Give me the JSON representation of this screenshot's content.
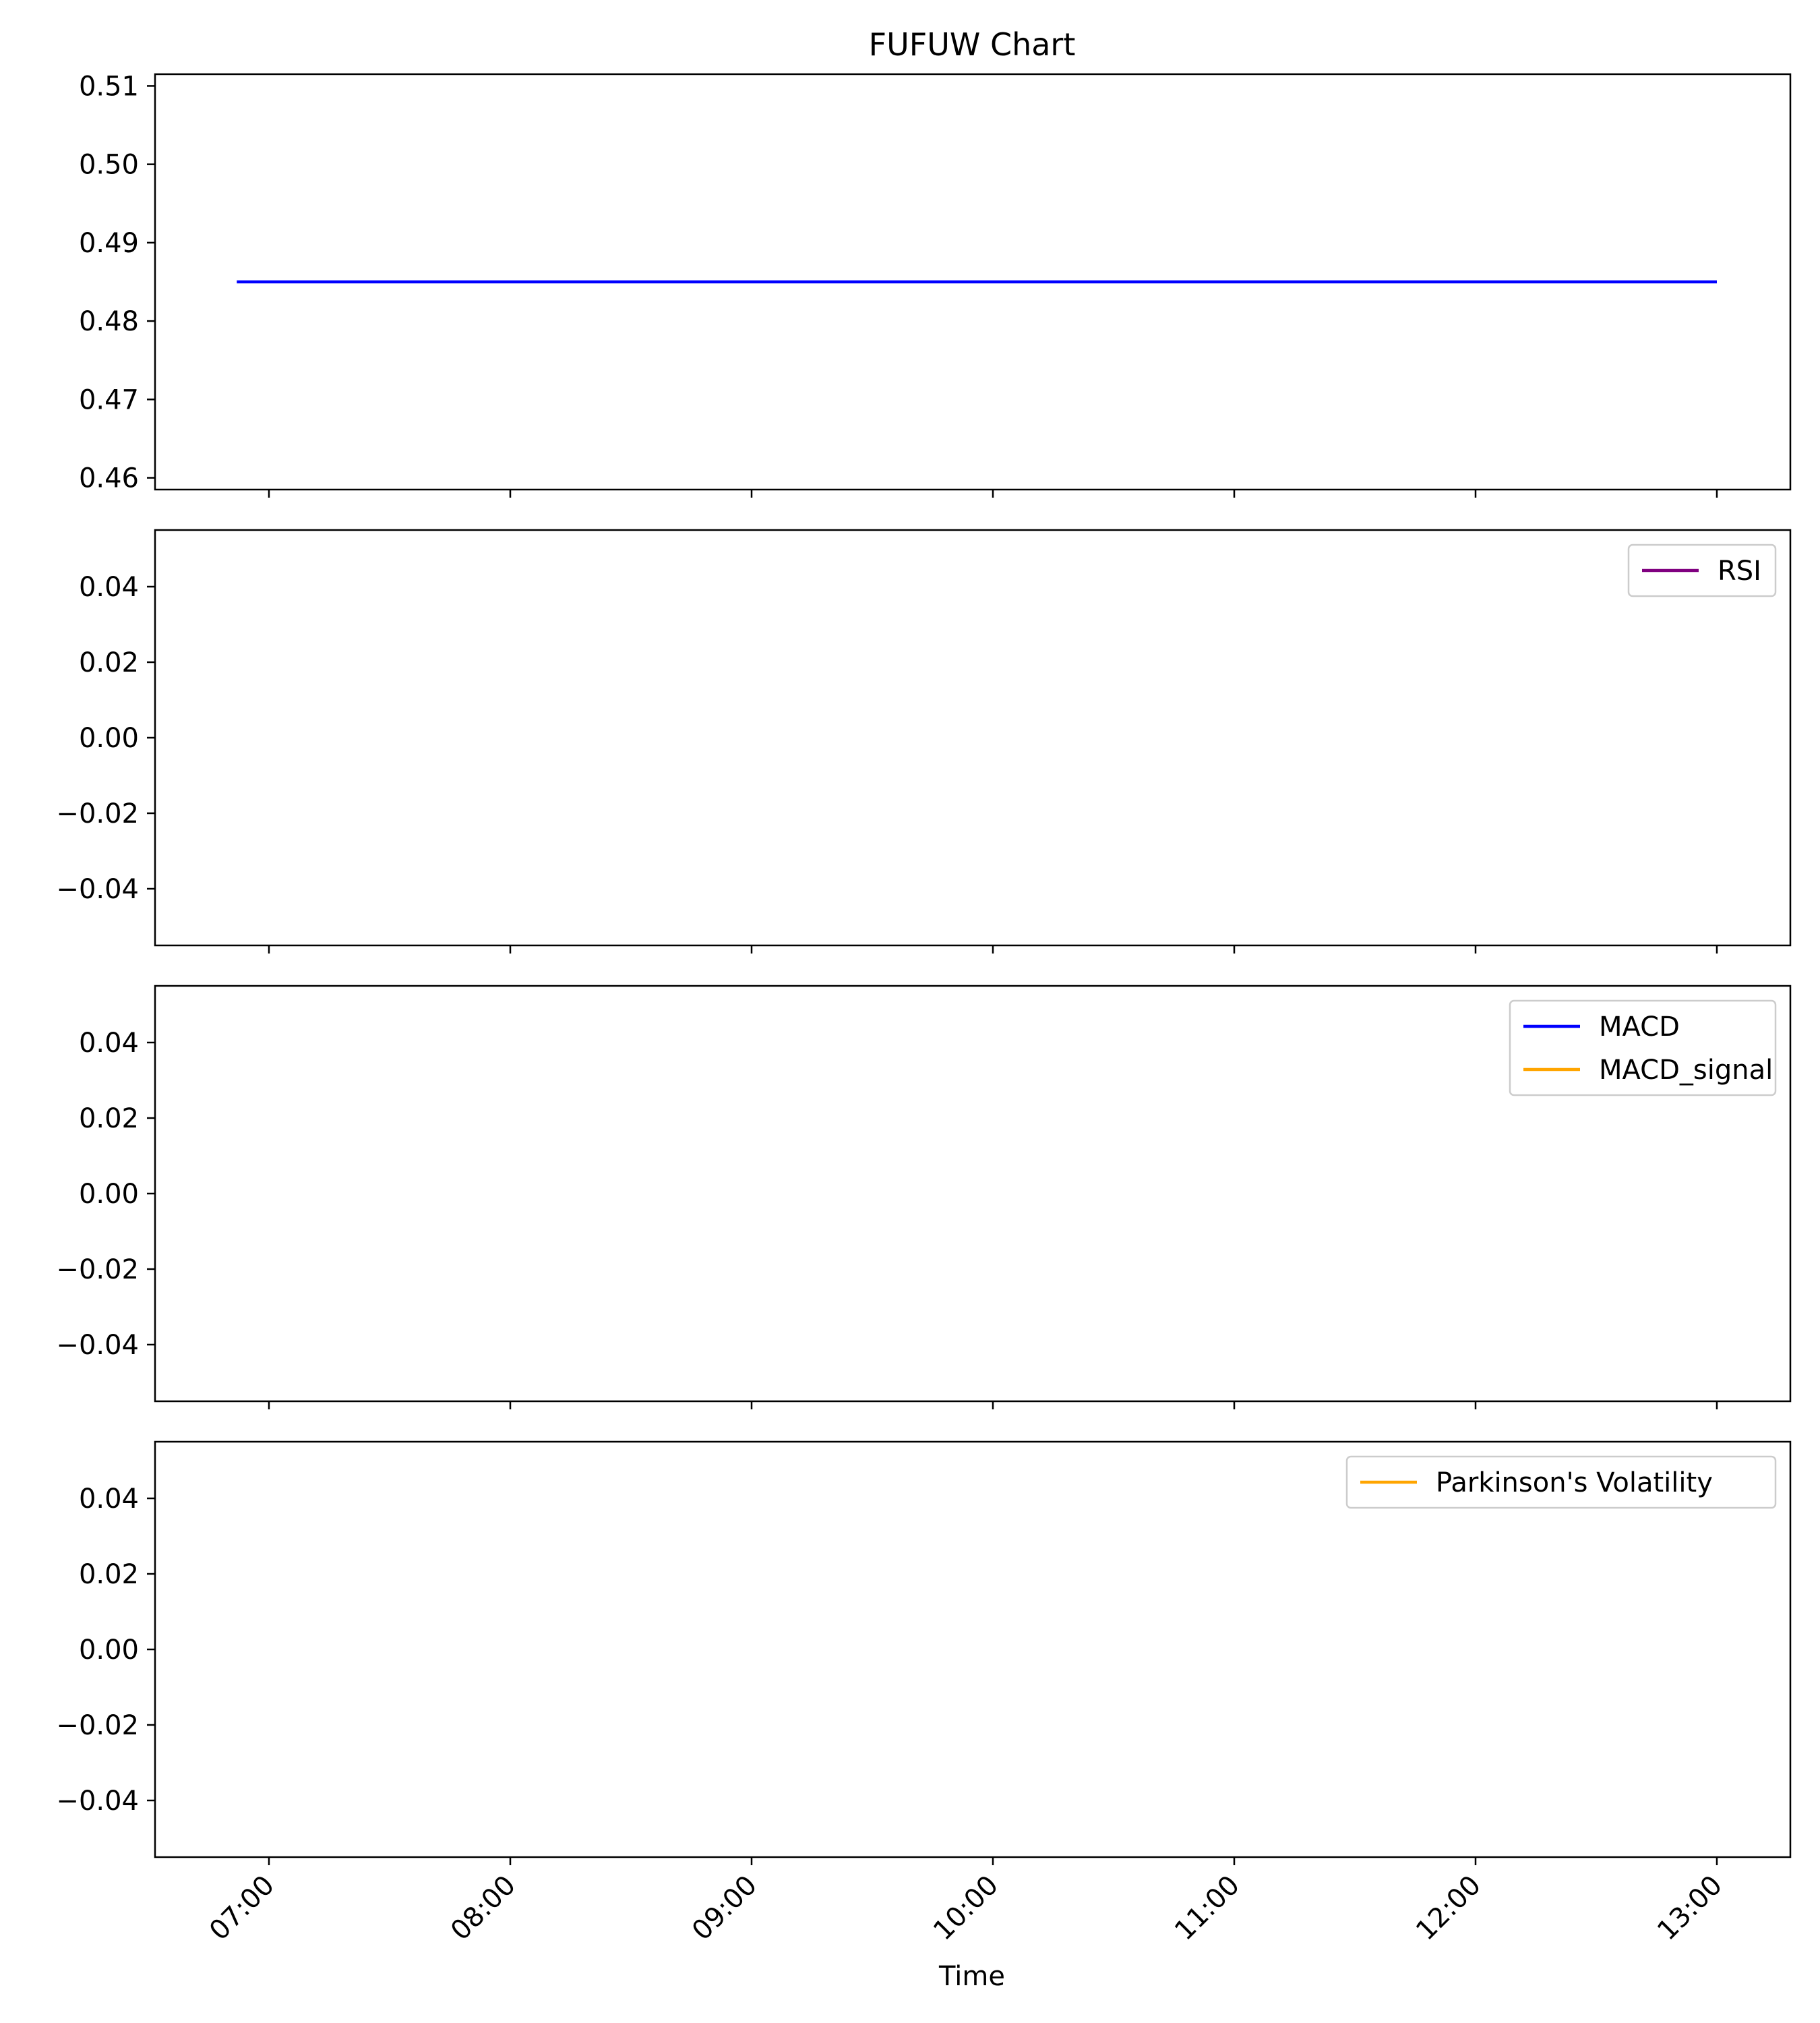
{
  "chart_data": {
    "type": "line",
    "title": "FUFUW Chart",
    "xlabel": "Time",
    "x_ticks": [
      "07:00",
      "08:00",
      "09:00",
      "10:00",
      "11:00",
      "12:00",
      "13:00"
    ],
    "panels": [
      {
        "name": "price",
        "ylim": [
          0.4585,
          0.5115
        ],
        "y_ticks": [
          "0.51",
          "0.50",
          "0.49",
          "0.48",
          "0.47",
          "0.46"
        ],
        "y_tick_values": [
          0.51,
          0.5,
          0.49,
          0.48,
          0.47,
          0.46
        ],
        "legend": [],
        "series": [
          {
            "color": "#0000ff",
            "x": [
              "06:52",
              "13:00"
            ],
            "y": [
              0.485,
              0.485
            ]
          }
        ]
      },
      {
        "name": "rsi",
        "ylim": [
          -0.055,
          0.055
        ],
        "y_ticks": [
          "0.04",
          "0.02",
          "0.00",
          "−0.02",
          "−0.04"
        ],
        "y_tick_values": [
          0.04,
          0.02,
          0.0,
          -0.02,
          -0.04
        ],
        "legend": [
          {
            "label": "RSI",
            "color": "#800080"
          }
        ],
        "series": []
      },
      {
        "name": "macd",
        "ylim": [
          -0.055,
          0.055
        ],
        "y_ticks": [
          "0.04",
          "0.02",
          "0.00",
          "−0.02",
          "−0.04"
        ],
        "y_tick_values": [
          0.04,
          0.02,
          0.0,
          -0.02,
          -0.04
        ],
        "legend": [
          {
            "label": "MACD",
            "color": "#0000ff"
          },
          {
            "label": "MACD_signal",
            "color": "#ffa500"
          }
        ],
        "series": []
      },
      {
        "name": "volatility",
        "ylim": [
          -0.055,
          0.055
        ],
        "y_ticks": [
          "0.04",
          "0.02",
          "0.00",
          "−0.02",
          "−0.04"
        ],
        "y_tick_values": [
          0.04,
          0.02,
          0.0,
          -0.02,
          -0.04
        ],
        "legend": [
          {
            "label": "Parkinson's Volatility",
            "color": "#ffa500"
          }
        ],
        "series": []
      }
    ]
  }
}
